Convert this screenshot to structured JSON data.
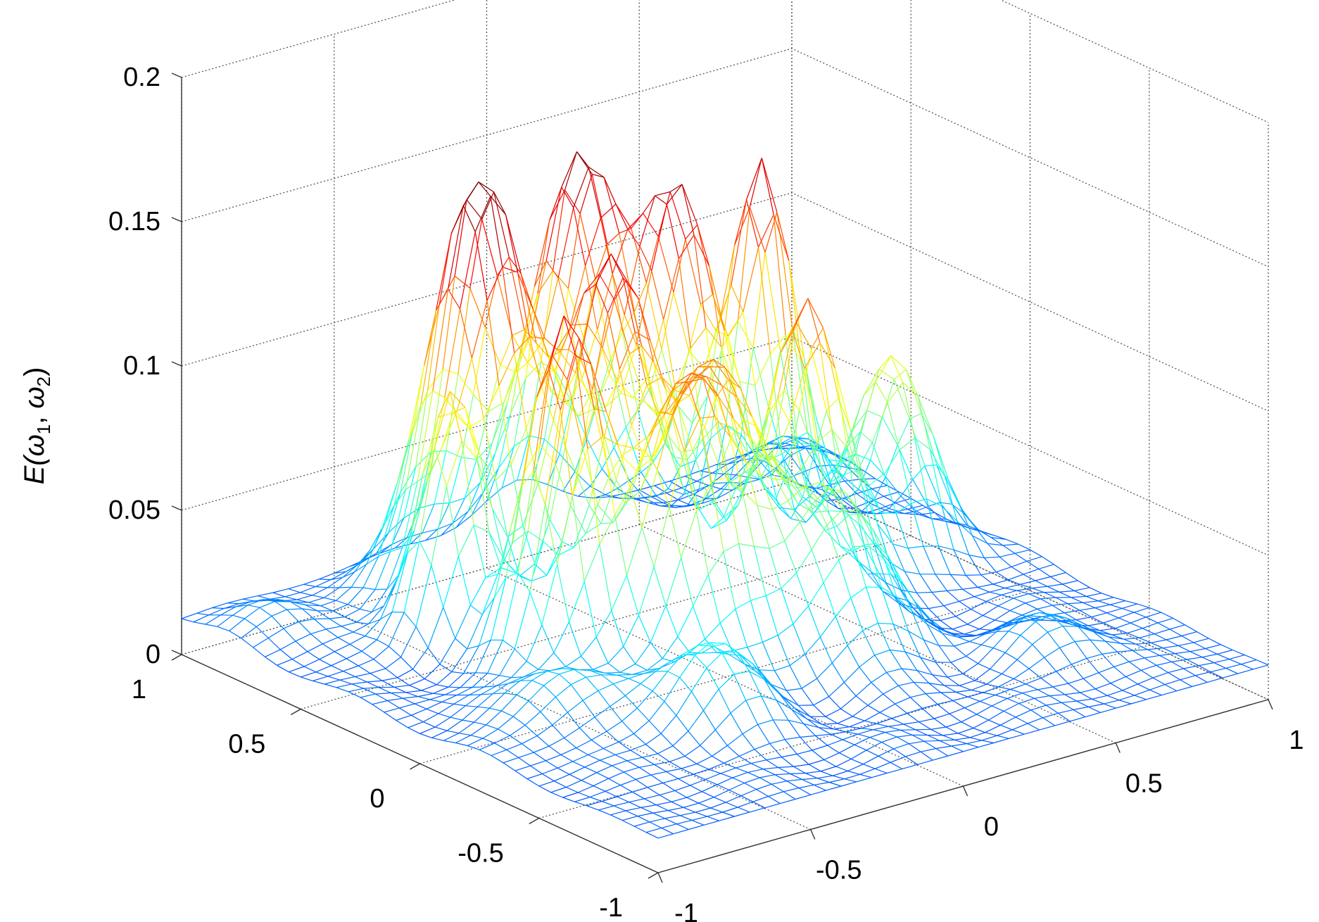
{
  "chart_data": {
    "type": "surface",
    "mesh": "wireframe",
    "colormap": "jet",
    "title": "",
    "xlabel": "",
    "ylabel": "",
    "zlabel": {
      "base": "E(",
      "var1": "ω",
      "sub1": "1",
      "sep": ", ",
      "var2": "ω",
      "sub2": "2",
      "close": ")"
    },
    "xlim": [
      -1,
      1
    ],
    "ylim": [
      -1,
      1
    ],
    "zlim": [
      0,
      0.2
    ],
    "x_ticks": [
      "-1",
      "-0.5",
      "0",
      "0.5",
      "1"
    ],
    "y_ticks": [
      "-1",
      "-0.5",
      "0",
      "0.5",
      "1"
    ],
    "z_ticks": [
      "0",
      "0.05",
      "0.1",
      "0.15",
      "0.2"
    ],
    "grid": true,
    "grid_size": 41,
    "base_level": 0.012,
    "peaks": [
      {
        "x": -0.3,
        "y": 0.65,
        "height": 0.145,
        "width": 0.13
      },
      {
        "x": 0.1,
        "y": 0.75,
        "height": 0.135,
        "width": 0.12
      },
      {
        "x": 0.25,
        "y": 0.5,
        "height": 0.125,
        "width": 0.11
      },
      {
        "x": -0.1,
        "y": 0.35,
        "height": 0.115,
        "width": 0.12
      },
      {
        "x": -0.45,
        "y": 0.1,
        "height": 0.12,
        "width": 0.1
      },
      {
        "x": 0.55,
        "y": 0.55,
        "height": 0.125,
        "width": 0.09
      },
      {
        "x": 0.35,
        "y": 0.1,
        "height": 0.105,
        "width": 0.1
      },
      {
        "x": -0.2,
        "y": -0.1,
        "height": 0.09,
        "width": 0.12
      },
      {
        "x": 0.15,
        "y": -0.25,
        "height": 0.06,
        "width": 0.13
      },
      {
        "x": 0.7,
        "y": 0.2,
        "height": 0.07,
        "width": 0.11
      },
      {
        "x": -0.55,
        "y": 0.45,
        "height": 0.08,
        "width": 0.08
      },
      {
        "x": 0.0,
        "y": 0.05,
        "height": 0.08,
        "width": 0.12
      },
      {
        "x": -0.4,
        "y": -0.45,
        "height": 0.028,
        "width": 0.12
      },
      {
        "x": -0.7,
        "y": -0.2,
        "height": 0.018,
        "width": 0.12
      },
      {
        "x": 0.6,
        "y": -0.6,
        "height": 0.012,
        "width": 0.12
      },
      {
        "x": 0.85,
        "y": 0.8,
        "height": 0.015,
        "width": 0.1
      },
      {
        "x": -0.85,
        "y": 0.8,
        "height": 0.01,
        "width": 0.1
      }
    ]
  }
}
